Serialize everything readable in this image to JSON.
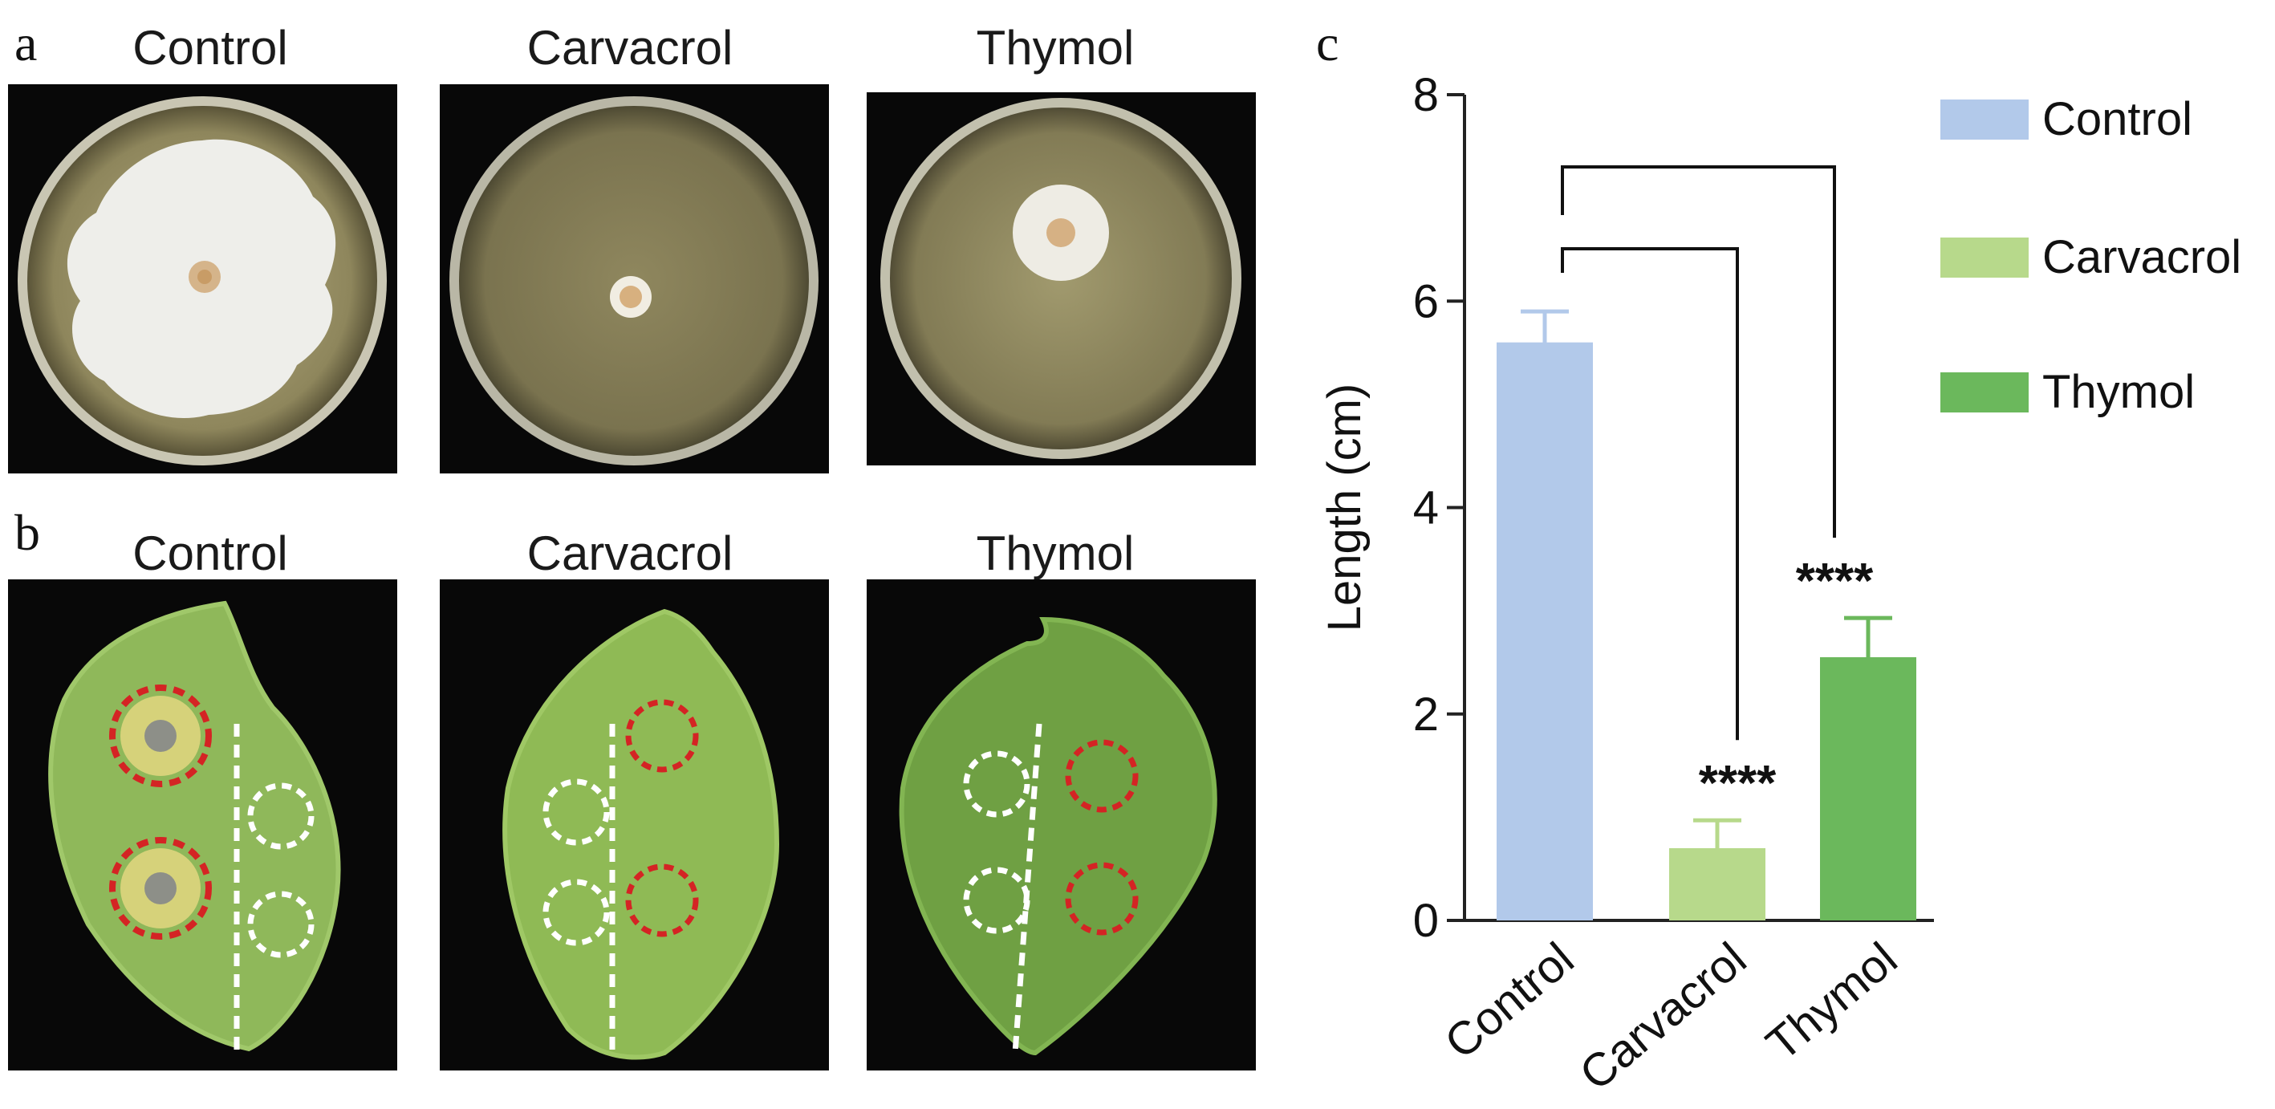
{
  "figure": {
    "panel_letters": {
      "a": "a",
      "b": "b",
      "c": "c"
    },
    "row_a_labels": [
      "Control",
      "Carvacrol",
      "Thymol"
    ],
    "row_b_labels": [
      "Control",
      "Carvacrol",
      "Thymol"
    ]
  },
  "chart_data": {
    "type": "bar",
    "title": "",
    "xlabel": "",
    "ylabel": "Length (cm)",
    "categories": [
      "Control",
      "Carvacrol",
      "Thymol"
    ],
    "values": [
      5.6,
      0.7,
      2.55
    ],
    "errors": [
      0.3,
      0.27,
      0.38
    ],
    "colors": [
      "#b2c9ea",
      "#b7d98b",
      "#6bb85c"
    ],
    "ylim": [
      0,
      8
    ],
    "yticks": [
      "0",
      "2",
      "4",
      "6",
      "8"
    ],
    "significance": [
      {
        "from": "Control",
        "to": "Carvacrol",
        "label": "****"
      },
      {
        "from": "Control",
        "to": "Thymol",
        "label": "****"
      }
    ],
    "legend": {
      "position": "top-right",
      "entries": [
        "Control",
        "Carvacrol",
        "Thymol"
      ]
    },
    "grid": false
  }
}
